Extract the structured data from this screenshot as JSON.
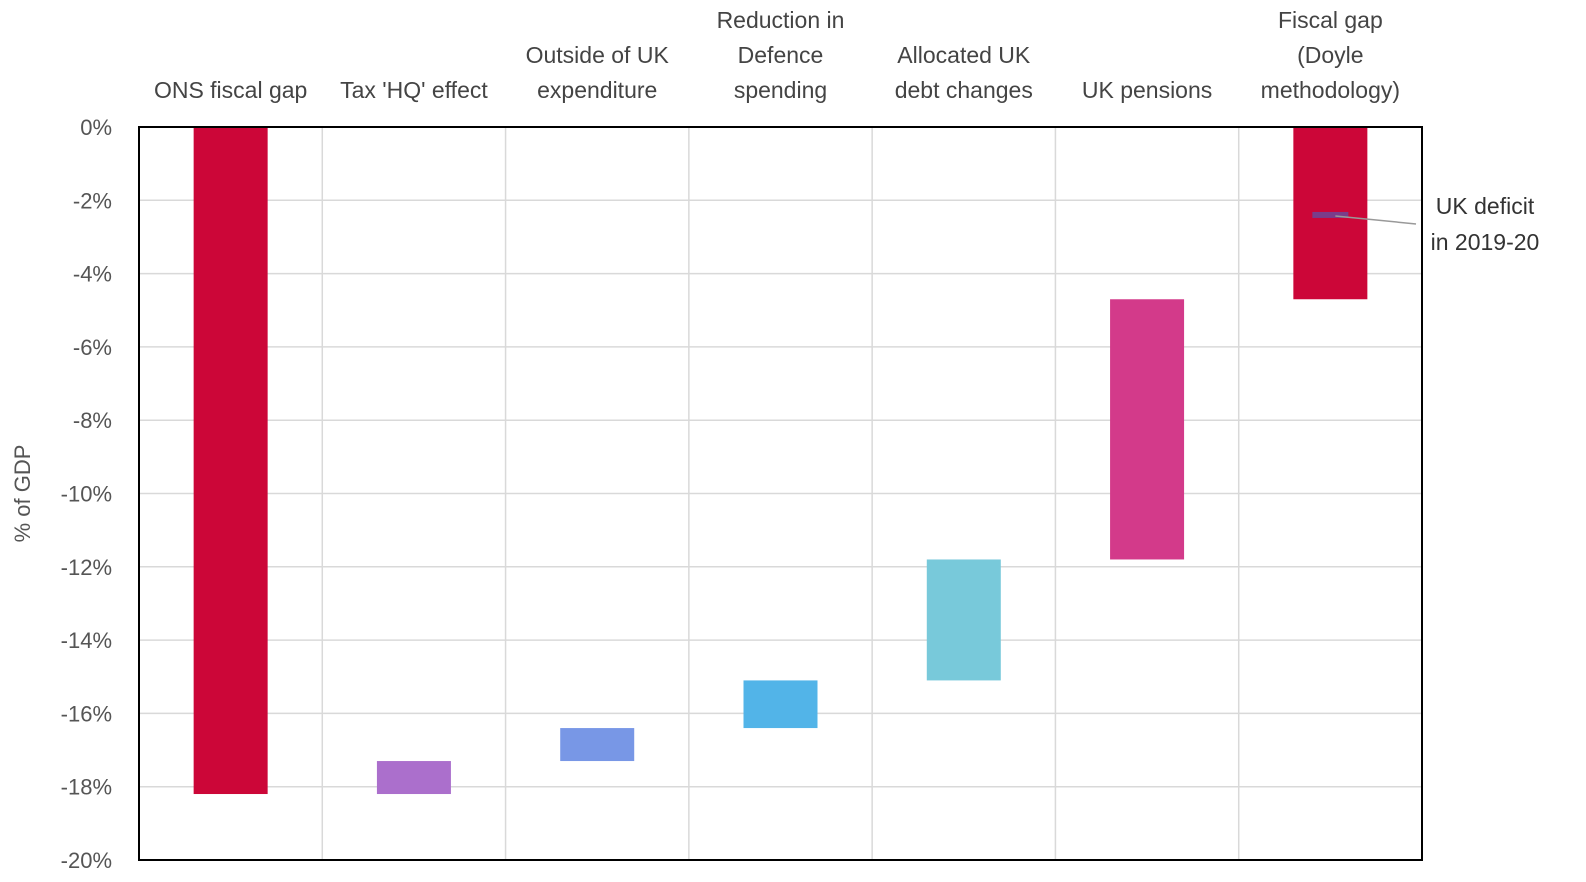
{
  "chart_data": {
    "type": "bar",
    "subtype": "waterfall",
    "title": "",
    "ylabel": "% of GDP",
    "ylim": [
      -20,
      0
    ],
    "yticks": [
      0,
      -2,
      -4,
      -6,
      -8,
      -10,
      -12,
      -14,
      -16,
      -18,
      -20
    ],
    "ytick_labels": [
      "0%",
      "-2%",
      "-4%",
      "-6%",
      "-8%",
      "-10%",
      "-12%",
      "-14%",
      "-16%",
      "-18%",
      "-20%"
    ],
    "category_label_position": "top",
    "grid": true,
    "categories": [
      [
        "ONS fiscal gap"
      ],
      [
        "Tax 'HQ' effect"
      ],
      [
        "Outside of UK",
        "expenditure"
      ],
      [
        "Reduction in",
        "Defence",
        "spending"
      ],
      [
        "Allocated UK",
        "debt changes"
      ],
      [
        "UK pensions"
      ],
      [
        "Fiscal gap",
        "(Doyle",
        "methodology)"
      ]
    ],
    "bars": [
      {
        "from": 0,
        "to": -18.2,
        "color": "#cc0638"
      },
      {
        "from": -18.2,
        "to": -17.3,
        "color": "#ab6fcc"
      },
      {
        "from": -17.3,
        "to": -16.4,
        "color": "#7897e6"
      },
      {
        "from": -16.4,
        "to": -15.1,
        "color": "#52b4e8"
      },
      {
        "from": -15.1,
        "to": -11.8,
        "color": "#78c9da"
      },
      {
        "from": -11.8,
        "to": -4.7,
        "color": "#d33a8a"
      },
      {
        "from": 0,
        "to": -4.7,
        "color": "#cc0638"
      }
    ],
    "annotation": {
      "text": [
        "UK deficit",
        "in 2019-20"
      ],
      "category_index": 6,
      "value": -2.4,
      "marker_color": "#7a3d8a"
    }
  },
  "colors": {
    "grid": "#d9d9d9",
    "frame": "#000000",
    "leader_line": "#999999"
  }
}
